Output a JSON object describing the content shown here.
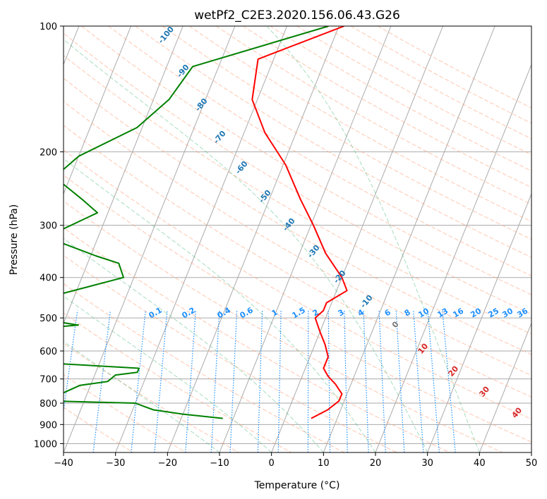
{
  "chart_data": {
    "type": "skew-t",
    "title": "wetPf2_C2E3.2020.156.06.43.G26",
    "xlabel": "Temperature (°C)",
    "ylabel": "Pressure (hPa)",
    "xlim": [
      -40,
      50
    ],
    "ylim": [
      1050,
      100
    ],
    "x_ticks": [
      "−40",
      "−30",
      "−20",
      "−10",
      "0",
      "10",
      "20",
      "30",
      "40",
      "50"
    ],
    "y_ticks": [
      "100",
      "200",
      "300",
      "400",
      "500",
      "600",
      "700",
      "800",
      "900",
      "1000"
    ],
    "grid": true,
    "series": [
      {
        "name": "temperature",
        "color": "#ff0000",
        "points": [
          [
            -19,
            100
          ],
          [
            -33,
            120
          ],
          [
            -31,
            150
          ],
          [
            -26,
            180
          ],
          [
            -19.5,
            215
          ],
          [
            -14,
            260
          ],
          [
            -9.5,
            300
          ],
          [
            -5,
            350
          ],
          [
            0,
            400
          ],
          [
            2,
            430
          ],
          [
            -1,
            460
          ],
          [
            -1,
            480
          ],
          [
            -2,
            500
          ],
          [
            0,
            540
          ],
          [
            2,
            580
          ],
          [
            3.5,
            620
          ],
          [
            3.5,
            660
          ],
          [
            5,
            690
          ],
          [
            7,
            720
          ],
          [
            9,
            760
          ],
          [
            9,
            790
          ],
          [
            7.5,
            830
          ],
          [
            5,
            870
          ]
        ]
      },
      {
        "name": "dewpoint",
        "color": "#008000",
        "points": [
          [
            -22,
            100
          ],
          [
            -45,
            125
          ],
          [
            -47,
            150
          ],
          [
            -51,
            175
          ],
          [
            -60,
            205
          ],
          [
            -63,
            230
          ],
          [
            -56,
            260
          ],
          [
            -52,
            280
          ],
          [
            -60,
            320
          ],
          [
            -49,
            355
          ],
          [
            -44,
            370
          ],
          [
            -42,
            400
          ],
          [
            -56,
            450
          ],
          [
            -127,
            458
          ],
          [
            -127,
            475
          ],
          [
            -55,
            503
          ],
          [
            -47,
            520
          ],
          [
            -65,
            545
          ],
          [
            -71,
            565
          ],
          [
            -64,
            600
          ],
          [
            -51,
            640
          ],
          [
            -32,
            660
          ],
          [
            -32,
            675
          ],
          [
            -36,
            685
          ],
          [
            -37,
            710
          ],
          [
            -42,
            725
          ],
          [
            -45,
            760
          ],
          [
            -50,
            775
          ],
          [
            -62,
            785
          ],
          [
            -61,
            790
          ],
          [
            -47,
            790
          ],
          [
            -30,
            800
          ],
          [
            -28,
            815
          ],
          [
            -26,
            830
          ],
          [
            -20,
            850
          ],
          [
            -12,
            870
          ]
        ]
      }
    ],
    "dry_adiabat_labels": [
      "-100",
      "-90",
      "-80",
      "-70",
      "-60",
      "-50",
      "-40",
      "-30",
      "-20",
      "-10",
      "0",
      "10",
      "20",
      "30",
      "40"
    ],
    "mixing_ratio_labels": [
      "0.1",
      "0.2",
      "0.4",
      "0.6",
      "1",
      "1.5",
      "2",
      "3",
      "4",
      "6",
      "8",
      "10",
      "13",
      "16",
      "20",
      "25",
      "30",
      "36"
    ]
  }
}
